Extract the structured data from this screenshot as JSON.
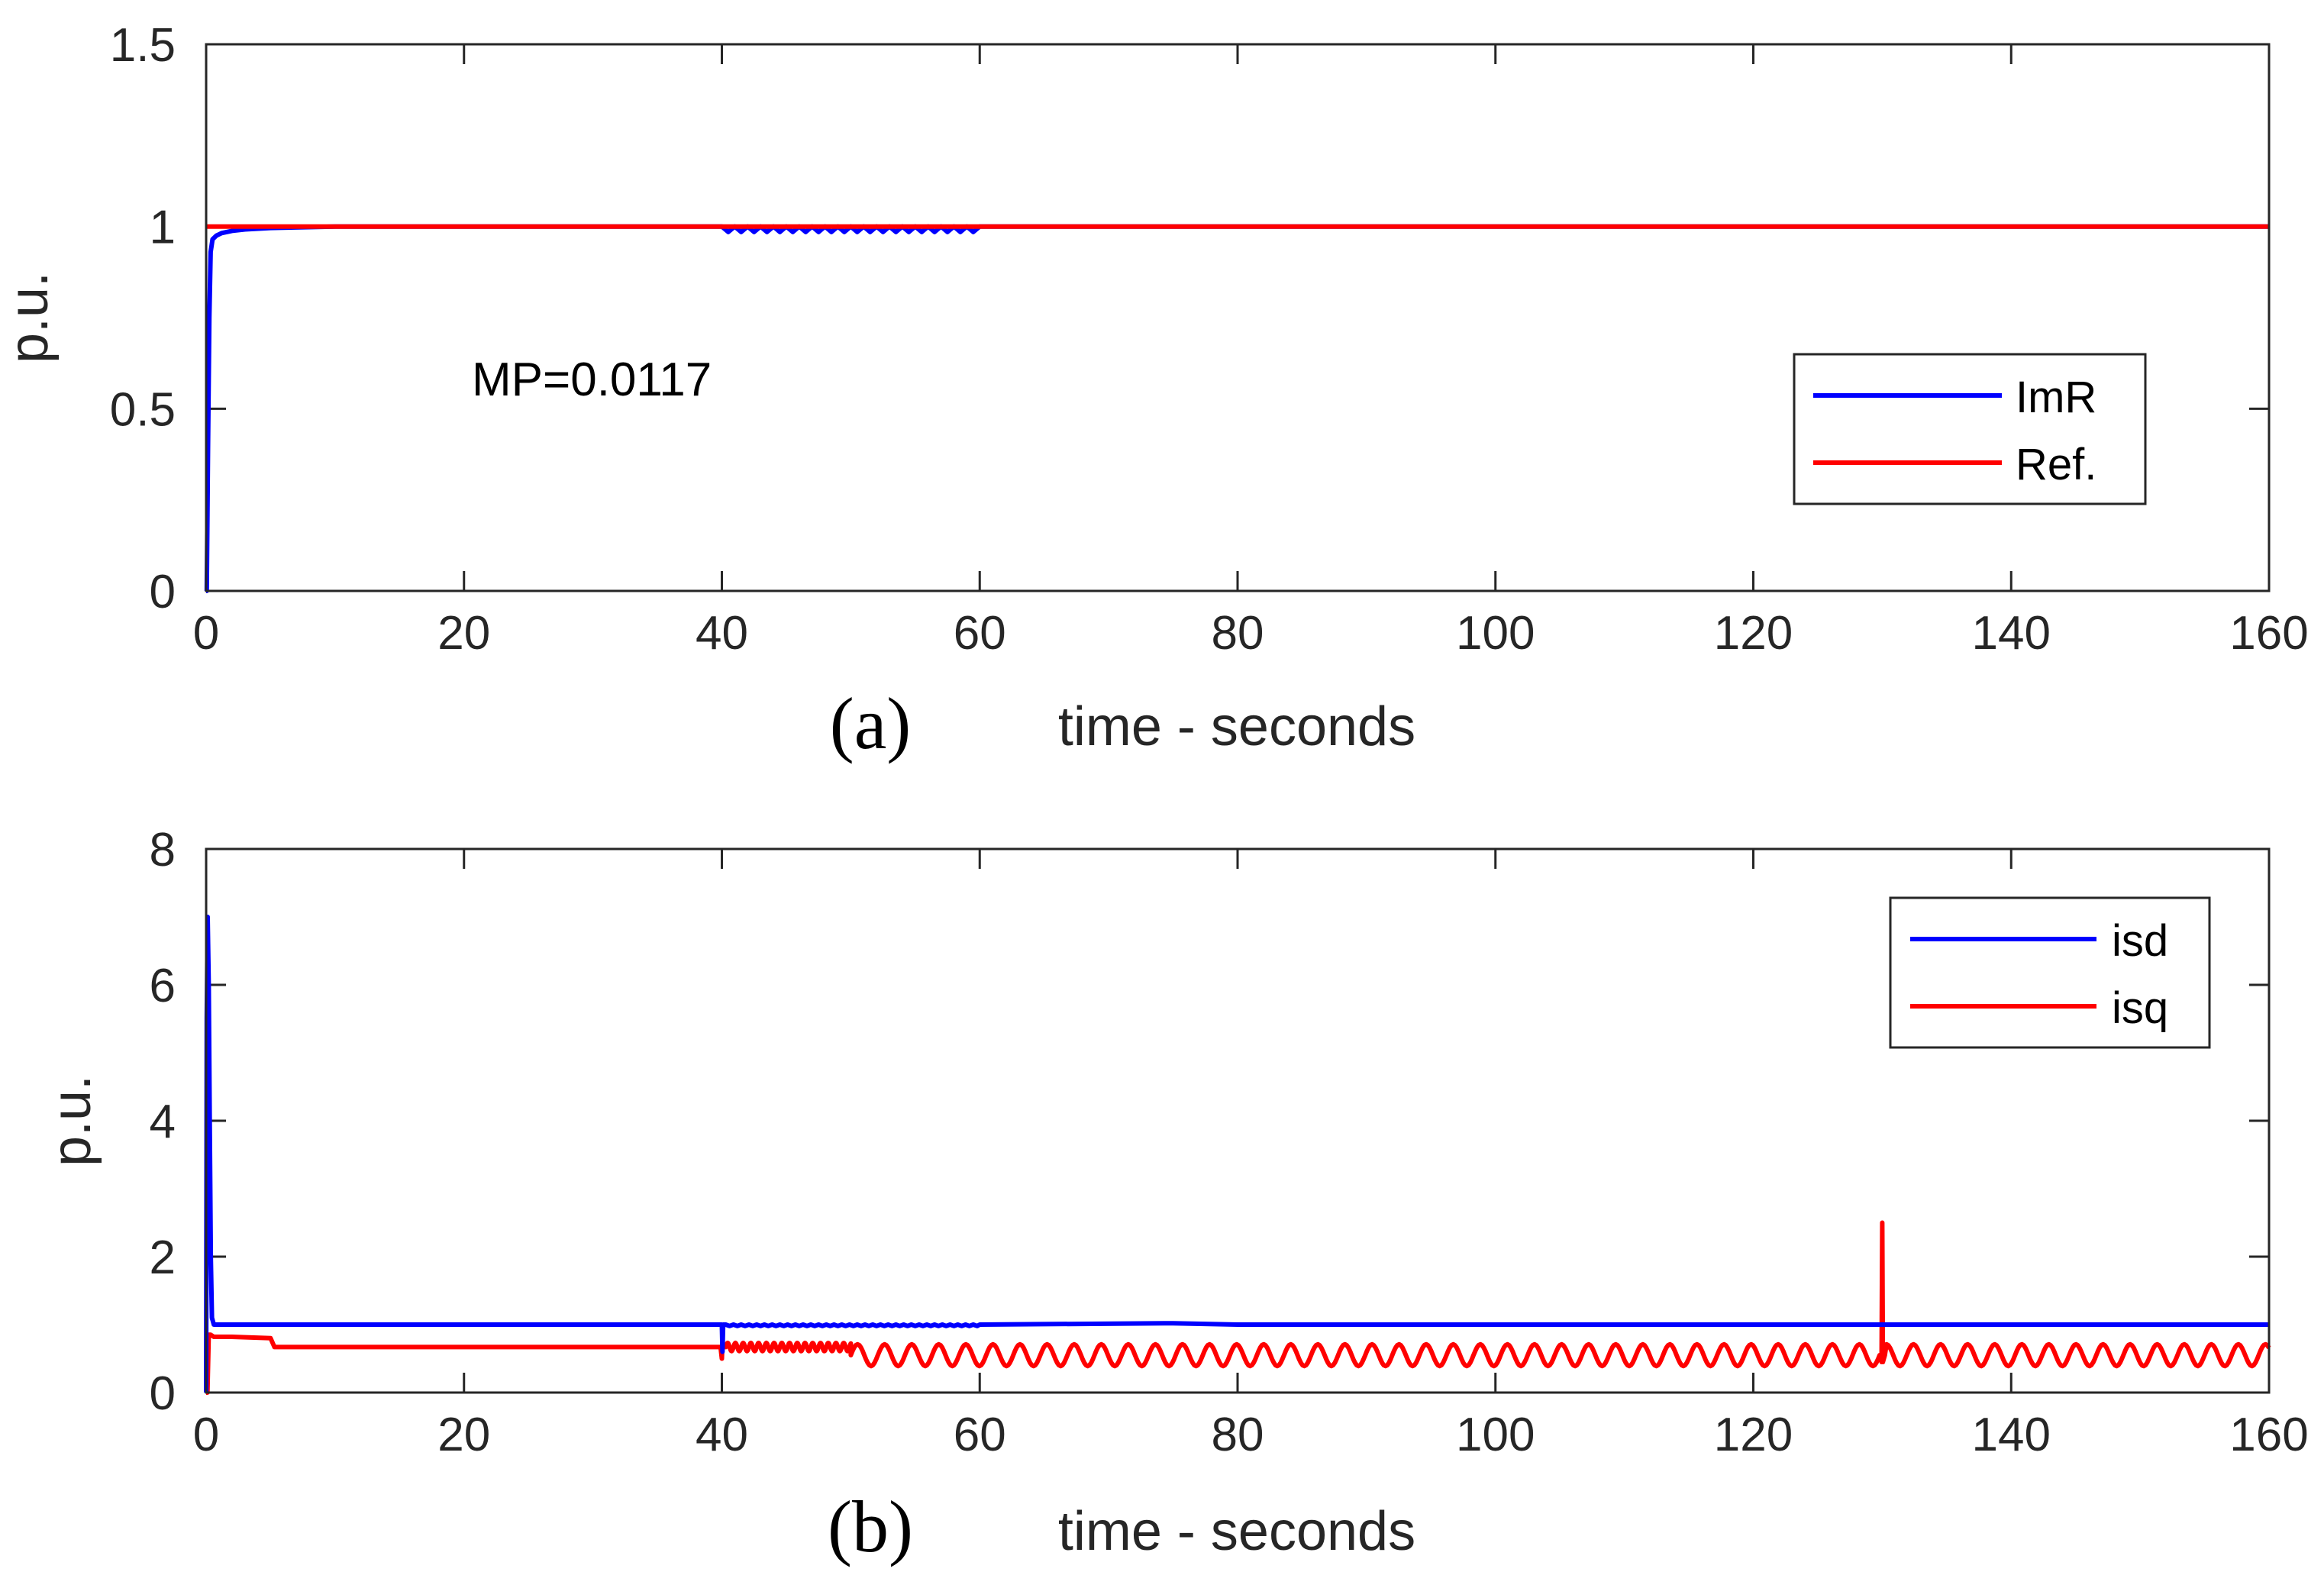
{
  "chart_data": [
    {
      "type": "line",
      "panel_label": "(a)",
      "xlabel": "time - seconds",
      "ylabel": "p.u.",
      "xlim": [
        0,
        160
      ],
      "ylim": [
        0,
        1.5
      ],
      "xticks": [
        0,
        20,
        40,
        60,
        80,
        100,
        120,
        140,
        160
      ],
      "xtick_labels": [
        "0",
        "20",
        "40",
        "60",
        "80",
        "100",
        "120",
        "140",
        "160"
      ],
      "yticks": [
        0,
        0.5,
        1,
        1.5
      ],
      "ytick_labels": [
        "0",
        "0.5",
        "1",
        "1.5"
      ],
      "annotation": "MP=0.0117",
      "legend_position": "right",
      "series": [
        {
          "name": "ImR",
          "color": "#0000ff",
          "x": [
            0,
            0.05,
            0.15,
            0.25,
            0.35,
            0.5,
            0.8,
            1.2,
            2,
            3,
            5,
            10,
            40,
            40.5,
            41,
            41.5,
            42,
            42.5,
            43,
            43.5,
            44,
            44.5,
            45,
            45.5,
            46,
            46.5,
            47,
            47.5,
            48,
            48.5,
            49,
            49.5,
            50,
            50.5,
            51,
            51.5,
            52,
            52.5,
            53,
            53.5,
            54,
            54.5,
            55,
            55.5,
            56,
            56.5,
            57,
            57.5,
            58,
            58.5,
            59,
            59.5,
            60,
            60.5,
            160
          ],
          "y": [
            0,
            0,
            0.4,
            0.75,
            0.93,
            0.965,
            0.975,
            0.982,
            0.988,
            0.992,
            0.996,
            1.0,
            1.0,
            0.985,
            1.0,
            0.985,
            1.0,
            0.985,
            1.0,
            0.985,
            1.0,
            0.985,
            1.0,
            0.985,
            1.0,
            0.985,
            1.0,
            0.985,
            1.0,
            0.985,
            1.0,
            0.985,
            1.0,
            0.985,
            1.0,
            0.985,
            1.0,
            0.985,
            1.0,
            0.985,
            1.0,
            0.985,
            1.0,
            0.985,
            1.0,
            0.985,
            1.0,
            0.985,
            1.0,
            0.985,
            1.0,
            0.985,
            1.0,
            1.0,
            1.0
          ]
        },
        {
          "name": "Ref.",
          "color": "#ff0000",
          "x": [
            0,
            160
          ],
          "y": [
            1,
            1
          ]
        }
      ]
    },
    {
      "type": "line",
      "panel_label": "(b)",
      "xlabel": "time - seconds",
      "ylabel": "p.u.",
      "xlim": [
        0,
        160
      ],
      "ylim": [
        0,
        8
      ],
      "xticks": [
        0,
        20,
        40,
        60,
        80,
        100,
        120,
        140,
        160
      ],
      "xtick_labels": [
        "0",
        "20",
        "40",
        "60",
        "80",
        "100",
        "120",
        "140",
        "160"
      ],
      "yticks": [
        0,
        2,
        4,
        6,
        8
      ],
      "ytick_labels": [
        "0",
        "2",
        "4",
        "6",
        "8"
      ],
      "legend_position": "top-right",
      "series": [
        {
          "name": "isd",
          "color": "#0000ff",
          "x": [
            0,
            0.05,
            0.12,
            0.2,
            0.28,
            0.36,
            0.45,
            0.6,
            1.0,
            40.0,
            40.05,
            40.1,
            40.2,
            45,
            60,
            75,
            80,
            160
          ],
          "y": [
            0,
            5.5,
            7.0,
            6.0,
            4.0,
            2.0,
            1.1,
            1.0,
            1.0,
            1.0,
            0.6,
            1.0,
            1.0,
            1.0,
            1.0,
            1.02,
            1.0,
            1.0
          ],
          "ripple": {
            "from": 40.3,
            "to": 60,
            "period": 0.6,
            "amplitude": 0.02
          }
        },
        {
          "name": "isq",
          "color": "#ff0000",
          "x": [
            0,
            0.1,
            0.2,
            0.35,
            0.6,
            2,
            5,
            5.3,
            20,
            39.9,
            40.0,
            40.05,
            40.1,
            40.3
          ],
          "y": [
            0,
            0.0,
            0.85,
            0.85,
            0.82,
            0.82,
            0.8,
            0.67,
            0.67,
            0.67,
            0.5,
            0.75,
            0.67,
            0.67
          ],
          "oscillation_segments": [
            {
              "from": 40.3,
              "to": 50,
              "period": 0.6,
              "center": 0.67,
              "amplitude": 0.06
            },
            {
              "from": 50,
              "to": 160,
              "period": 2.1,
              "center": 0.55,
              "amplitude": 0.16
            }
          ],
          "spike": {
            "x": 130,
            "peak": 2.5,
            "trough": 0.45
          }
        }
      ]
    }
  ]
}
